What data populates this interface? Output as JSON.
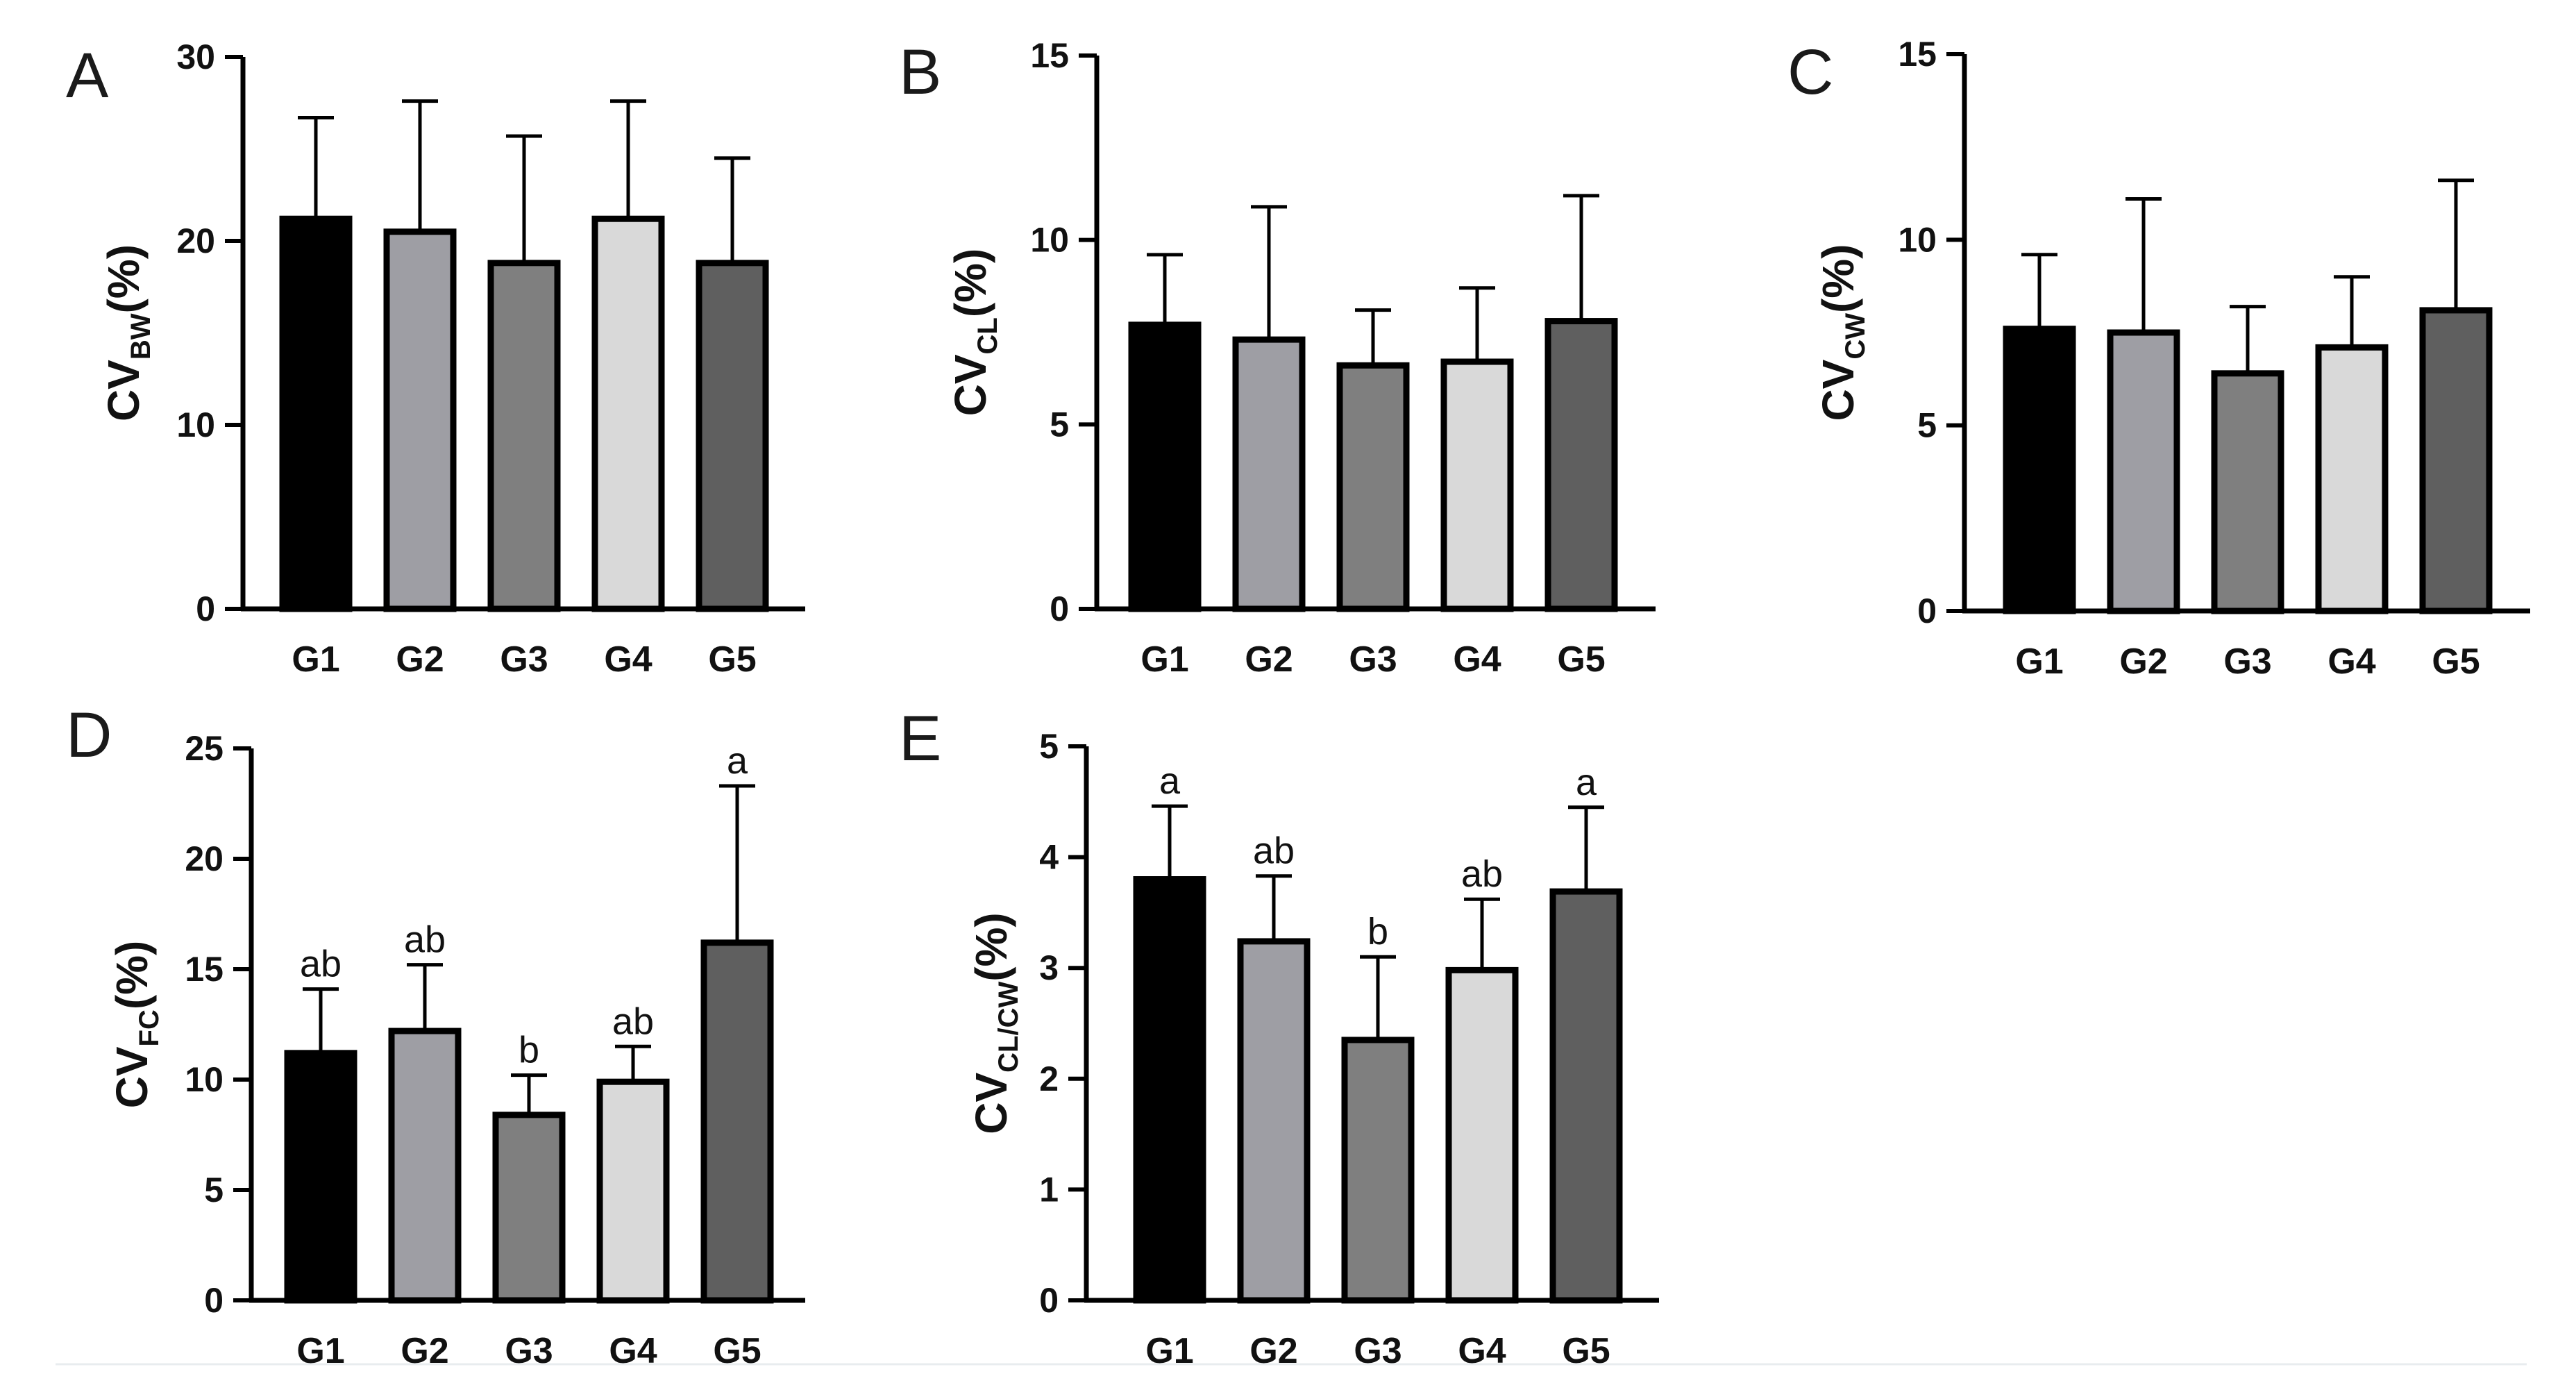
{
  "chart_data": [
    {
      "panel": "A",
      "type": "bar",
      "categories": [
        "G1",
        "G2",
        "G3",
        "G4",
        "G5"
      ],
      "values": [
        21.2,
        20.5,
        18.8,
        21.2,
        18.8
      ],
      "errors": [
        5.5,
        7.1,
        6.9,
        6.4,
        5.7
      ],
      "letters": [
        "",
        "",
        "",
        "",
        ""
      ],
      "ylabel_main": "CV",
      "ylabel_sub": "BW",
      "ylabel_suffix": "(%)",
      "ylim": [
        0,
        30
      ],
      "yticks": [
        0,
        10,
        20,
        30
      ]
    },
    {
      "panel": "B",
      "type": "bar",
      "categories": [
        "G1",
        "G2",
        "G3",
        "G4",
        "G5"
      ],
      "values": [
        7.7,
        7.3,
        6.6,
        6.7,
        7.8
      ],
      "errors": [
        1.9,
        3.6,
        1.5,
        2.0,
        3.4
      ],
      "letters": [
        "",
        "",
        "",
        "",
        ""
      ],
      "ylabel_main": "CV",
      "ylabel_sub": "CL",
      "ylabel_suffix": "(%)",
      "ylim": [
        0,
        15
      ],
      "yticks": [
        0,
        5,
        10,
        15
      ]
    },
    {
      "panel": "C",
      "type": "bar",
      "categories": [
        "G1",
        "G2",
        "G3",
        "G4",
        "G5"
      ],
      "values": [
        7.6,
        7.5,
        6.4,
        7.1,
        8.1
      ],
      "errors": [
        2.0,
        3.6,
        1.8,
        1.9,
        3.5
      ],
      "letters": [
        "",
        "",
        "",
        "",
        ""
      ],
      "ylabel_main": "CV",
      "ylabel_sub": "CW",
      "ylabel_suffix": "(%)",
      "ylim": [
        0,
        15
      ],
      "yticks": [
        0,
        5,
        10,
        15
      ]
    },
    {
      "panel": "D",
      "type": "bar",
      "categories": [
        "G1",
        "G2",
        "G3",
        "G4",
        "G5"
      ],
      "values": [
        11.2,
        12.2,
        8.4,
        9.9,
        16.2
      ],
      "errors": [
        2.9,
        3.0,
        1.8,
        1.6,
        7.1
      ],
      "letters": [
        "ab",
        "ab",
        "b",
        "ab",
        "a"
      ],
      "ylabel_main": "CV",
      "ylabel_sub": "FC",
      "ylabel_suffix": "(%)",
      "ylim": [
        0,
        25
      ],
      "yticks": [
        0,
        5,
        10,
        15,
        20,
        25
      ]
    },
    {
      "panel": "E",
      "type": "bar",
      "categories": [
        "G1",
        "G2",
        "G3",
        "G4",
        "G5"
      ],
      "values": [
        3.8,
        3.24,
        2.35,
        2.98,
        3.69
      ],
      "errors": [
        0.66,
        0.59,
        0.75,
        0.64,
        0.76
      ],
      "letters": [
        "a",
        "ab",
        "b",
        "ab",
        "a"
      ],
      "ylabel_main": "CV",
      "ylabel_sub": "CL/CW",
      "ylabel_suffix": "(%)",
      "ylim": [
        0,
        5
      ],
      "yticks": [
        0,
        1,
        2,
        3,
        4,
        5
      ]
    }
  ],
  "colors": {
    "bars": [
      "#000000",
      "#9e9ea4",
      "#7f7f7f",
      "#d9d9d9",
      "#5f5f5f"
    ],
    "outline": "#000000",
    "axis": "#000000"
  }
}
